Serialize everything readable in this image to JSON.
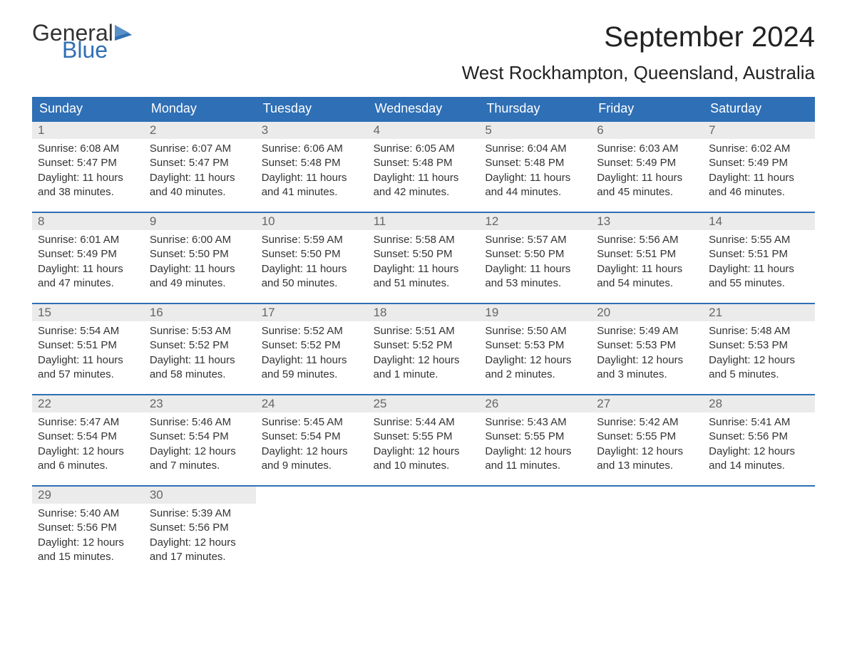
{
  "logo": {
    "text_top": "General",
    "text_bottom": "Blue",
    "icon_color": "#2f6fb5"
  },
  "title": "September 2024",
  "location": "West Rockhampton, Queensland, Australia",
  "colors": {
    "header_bg": "#2f6fb5",
    "header_text": "#ffffff",
    "daynum_bg": "#ebebeb",
    "daynum_text": "#666666",
    "body_text": "#333333",
    "border": "#2f6fb5"
  },
  "weekdays": [
    "Sunday",
    "Monday",
    "Tuesday",
    "Wednesday",
    "Thursday",
    "Friday",
    "Saturday"
  ],
  "weeks": [
    [
      {
        "day": "1",
        "sunrise": "Sunrise: 6:08 AM",
        "sunset": "Sunset: 5:47 PM",
        "daylight1": "Daylight: 11 hours",
        "daylight2": "and 38 minutes."
      },
      {
        "day": "2",
        "sunrise": "Sunrise: 6:07 AM",
        "sunset": "Sunset: 5:47 PM",
        "daylight1": "Daylight: 11 hours",
        "daylight2": "and 40 minutes."
      },
      {
        "day": "3",
        "sunrise": "Sunrise: 6:06 AM",
        "sunset": "Sunset: 5:48 PM",
        "daylight1": "Daylight: 11 hours",
        "daylight2": "and 41 minutes."
      },
      {
        "day": "4",
        "sunrise": "Sunrise: 6:05 AM",
        "sunset": "Sunset: 5:48 PM",
        "daylight1": "Daylight: 11 hours",
        "daylight2": "and 42 minutes."
      },
      {
        "day": "5",
        "sunrise": "Sunrise: 6:04 AM",
        "sunset": "Sunset: 5:48 PM",
        "daylight1": "Daylight: 11 hours",
        "daylight2": "and 44 minutes."
      },
      {
        "day": "6",
        "sunrise": "Sunrise: 6:03 AM",
        "sunset": "Sunset: 5:49 PM",
        "daylight1": "Daylight: 11 hours",
        "daylight2": "and 45 minutes."
      },
      {
        "day": "7",
        "sunrise": "Sunrise: 6:02 AM",
        "sunset": "Sunset: 5:49 PM",
        "daylight1": "Daylight: 11 hours",
        "daylight2": "and 46 minutes."
      }
    ],
    [
      {
        "day": "8",
        "sunrise": "Sunrise: 6:01 AM",
        "sunset": "Sunset: 5:49 PM",
        "daylight1": "Daylight: 11 hours",
        "daylight2": "and 47 minutes."
      },
      {
        "day": "9",
        "sunrise": "Sunrise: 6:00 AM",
        "sunset": "Sunset: 5:50 PM",
        "daylight1": "Daylight: 11 hours",
        "daylight2": "and 49 minutes."
      },
      {
        "day": "10",
        "sunrise": "Sunrise: 5:59 AM",
        "sunset": "Sunset: 5:50 PM",
        "daylight1": "Daylight: 11 hours",
        "daylight2": "and 50 minutes."
      },
      {
        "day": "11",
        "sunrise": "Sunrise: 5:58 AM",
        "sunset": "Sunset: 5:50 PM",
        "daylight1": "Daylight: 11 hours",
        "daylight2": "and 51 minutes."
      },
      {
        "day": "12",
        "sunrise": "Sunrise: 5:57 AM",
        "sunset": "Sunset: 5:50 PM",
        "daylight1": "Daylight: 11 hours",
        "daylight2": "and 53 minutes."
      },
      {
        "day": "13",
        "sunrise": "Sunrise: 5:56 AM",
        "sunset": "Sunset: 5:51 PM",
        "daylight1": "Daylight: 11 hours",
        "daylight2": "and 54 minutes."
      },
      {
        "day": "14",
        "sunrise": "Sunrise: 5:55 AM",
        "sunset": "Sunset: 5:51 PM",
        "daylight1": "Daylight: 11 hours",
        "daylight2": "and 55 minutes."
      }
    ],
    [
      {
        "day": "15",
        "sunrise": "Sunrise: 5:54 AM",
        "sunset": "Sunset: 5:51 PM",
        "daylight1": "Daylight: 11 hours",
        "daylight2": "and 57 minutes."
      },
      {
        "day": "16",
        "sunrise": "Sunrise: 5:53 AM",
        "sunset": "Sunset: 5:52 PM",
        "daylight1": "Daylight: 11 hours",
        "daylight2": "and 58 minutes."
      },
      {
        "day": "17",
        "sunrise": "Sunrise: 5:52 AM",
        "sunset": "Sunset: 5:52 PM",
        "daylight1": "Daylight: 11 hours",
        "daylight2": "and 59 minutes."
      },
      {
        "day": "18",
        "sunrise": "Sunrise: 5:51 AM",
        "sunset": "Sunset: 5:52 PM",
        "daylight1": "Daylight: 12 hours",
        "daylight2": "and 1 minute."
      },
      {
        "day": "19",
        "sunrise": "Sunrise: 5:50 AM",
        "sunset": "Sunset: 5:53 PM",
        "daylight1": "Daylight: 12 hours",
        "daylight2": "and 2 minutes."
      },
      {
        "day": "20",
        "sunrise": "Sunrise: 5:49 AM",
        "sunset": "Sunset: 5:53 PM",
        "daylight1": "Daylight: 12 hours",
        "daylight2": "and 3 minutes."
      },
      {
        "day": "21",
        "sunrise": "Sunrise: 5:48 AM",
        "sunset": "Sunset: 5:53 PM",
        "daylight1": "Daylight: 12 hours",
        "daylight2": "and 5 minutes."
      }
    ],
    [
      {
        "day": "22",
        "sunrise": "Sunrise: 5:47 AM",
        "sunset": "Sunset: 5:54 PM",
        "daylight1": "Daylight: 12 hours",
        "daylight2": "and 6 minutes."
      },
      {
        "day": "23",
        "sunrise": "Sunrise: 5:46 AM",
        "sunset": "Sunset: 5:54 PM",
        "daylight1": "Daylight: 12 hours",
        "daylight2": "and 7 minutes."
      },
      {
        "day": "24",
        "sunrise": "Sunrise: 5:45 AM",
        "sunset": "Sunset: 5:54 PM",
        "daylight1": "Daylight: 12 hours",
        "daylight2": "and 9 minutes."
      },
      {
        "day": "25",
        "sunrise": "Sunrise: 5:44 AM",
        "sunset": "Sunset: 5:55 PM",
        "daylight1": "Daylight: 12 hours",
        "daylight2": "and 10 minutes."
      },
      {
        "day": "26",
        "sunrise": "Sunrise: 5:43 AM",
        "sunset": "Sunset: 5:55 PM",
        "daylight1": "Daylight: 12 hours",
        "daylight2": "and 11 minutes."
      },
      {
        "day": "27",
        "sunrise": "Sunrise: 5:42 AM",
        "sunset": "Sunset: 5:55 PM",
        "daylight1": "Daylight: 12 hours",
        "daylight2": "and 13 minutes."
      },
      {
        "day": "28",
        "sunrise": "Sunrise: 5:41 AM",
        "sunset": "Sunset: 5:56 PM",
        "daylight1": "Daylight: 12 hours",
        "daylight2": "and 14 minutes."
      }
    ],
    [
      {
        "day": "29",
        "sunrise": "Sunrise: 5:40 AM",
        "sunset": "Sunset: 5:56 PM",
        "daylight1": "Daylight: 12 hours",
        "daylight2": "and 15 minutes."
      },
      {
        "day": "30",
        "sunrise": "Sunrise: 5:39 AM",
        "sunset": "Sunset: 5:56 PM",
        "daylight1": "Daylight: 12 hours",
        "daylight2": "and 17 minutes."
      },
      null,
      null,
      null,
      null,
      null
    ]
  ]
}
